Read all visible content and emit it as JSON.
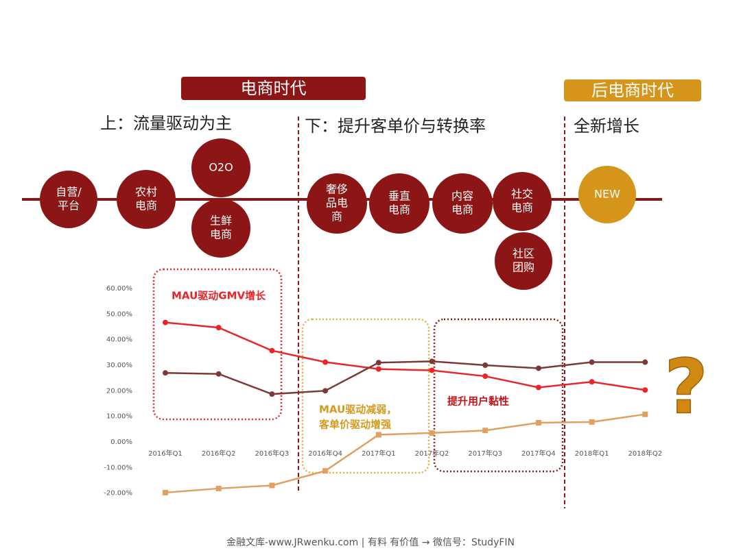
{
  "banners": [
    "电商时代",
    "后电商时代"
  ],
  "subheads": [
    "上：流量驱动为主",
    "下：提升客单价与转换率",
    "全新增长"
  ],
  "timeline": {
    "nodes": [
      [
        "自营/",
        "平台"
      ],
      [
        "农村",
        "电商"
      ],
      [
        "O2O"
      ],
      [
        "生鲜",
        "电商"
      ],
      [
        "奢侈",
        "品电",
        "商"
      ],
      [
        "垂直",
        "电商"
      ],
      [
        "内容",
        "电商"
      ],
      [
        "社交",
        "电商"
      ],
      [
        "社区",
        "团购"
      ],
      [
        "NEW"
      ]
    ]
  },
  "chart_data": {
    "type": "line",
    "categories": [
      "2016年Q1",
      "2016年Q2",
      "2016年Q3",
      "2016年Q4",
      "2017年Q1",
      "2017年Q2",
      "2017年Q3",
      "2017年Q4",
      "2018年Q1",
      "2018年Q2"
    ],
    "series": [
      {
        "color": "#e8262a",
        "values": [
          46.7,
          44.7,
          35.7,
          31.2,
          28.5,
          28.0,
          25.7,
          21.3,
          23.5,
          20.3
        ]
      },
      {
        "color": "#7b3a36",
        "values": [
          27.0,
          26.6,
          18.7,
          20.0,
          31.0,
          31.5,
          30.0,
          28.8,
          31.2,
          31.2
        ]
      },
      {
        "color": "#e0a060",
        "values": [
          -19.8,
          -18.2,
          -17.0,
          -11.3,
          2.8,
          3.5,
          4.5,
          7.5,
          7.8,
          10.8
        ]
      }
    ],
    "ylim": [
      -20,
      60
    ],
    "yticks": [
      {
        "value": -20,
        "label": "-20.00%"
      },
      {
        "value": -10,
        "label": "-10.00%"
      },
      {
        "value": 0,
        "label": "0.00%"
      },
      {
        "value": 10,
        "label": "10.00%"
      },
      {
        "value": 20,
        "label": "20.00%"
      },
      {
        "value": 30,
        "label": "30.00%"
      },
      {
        "value": 40,
        "label": "40.00%"
      },
      {
        "value": 50,
        "label": "50.00%"
      },
      {
        "value": 60,
        "label": "60.00%"
      }
    ],
    "annotations": [
      [
        "MAU驱动GMV增长"
      ],
      [
        "MAU驱动减弱，",
        "客单价驱动增强"
      ],
      [
        "提升用户黏性"
      ]
    ],
    "grid": false
  },
  "question_mark": "?",
  "footer": "金融文库-www.JRwenku.com | 有料 有价值 → 微信号：StudyFIN"
}
